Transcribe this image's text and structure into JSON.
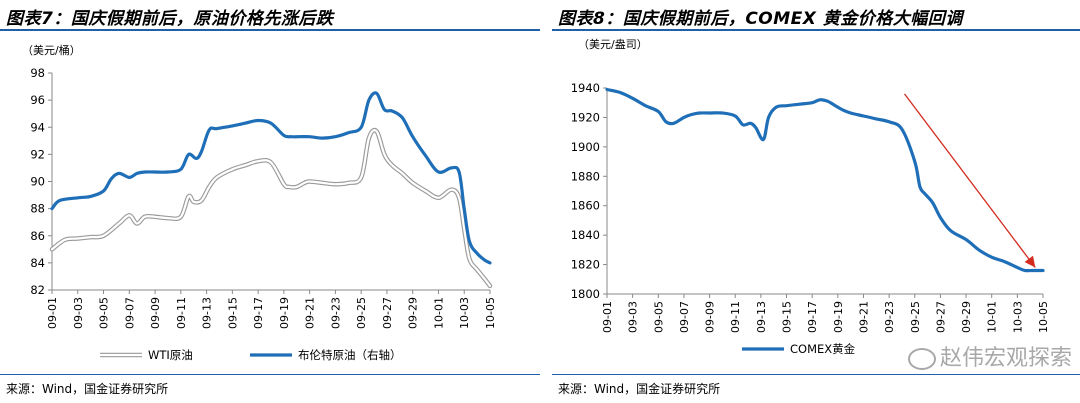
{
  "left": {
    "title": "图表7：国庆假期前后，原油价格先涨后跌",
    "unit": "（美元/桶）",
    "source": "来源：Wind，国金证券研究所"
  },
  "right": {
    "title": "图表8：国庆假期前后，COMEX 黄金价格大幅回调",
    "unit": "（美元/盎司）",
    "source": "来源：Wind，国金证券研究所"
  },
  "watermark": {
    "text": "赵伟宏观探索",
    "icon": "wechat-icon"
  },
  "chart_data": [
    {
      "type": "line",
      "ylim": [
        82,
        98
      ],
      "yticks": [
        82,
        84,
        86,
        88,
        90,
        92,
        94,
        96,
        98
      ],
      "categories": [
        "09-01",
        "09-03",
        "09-05",
        "09-07",
        "09-09",
        "09-11",
        "09-13",
        "09-15",
        "09-17",
        "09-19",
        "09-21",
        "09-23",
        "09-25",
        "09-27",
        "09-29",
        "10-01",
        "10-03",
        "10-05"
      ],
      "legend_position": "bottom",
      "grid": false,
      "series": [
        {
          "name": "WTI原油",
          "color": "#c8c8c8",
          "x": [
            0,
            0.5,
            1,
            1.5,
            2,
            2.6,
            3,
            3.3,
            3.6,
            4,
            4.5,
            5,
            5.3,
            5.5,
            5.8,
            6.1,
            6.4,
            7,
            7.5,
            8,
            8.5,
            9,
            9.2,
            9.5,
            9.8,
            10,
            10.5,
            11,
            11.5,
            12,
            12.3,
            12.6,
            12.9,
            13.2,
            13.6,
            14,
            14.5,
            15,
            15.5,
            15.8,
            16,
            16.2,
            16.5,
            16.8,
            17
          ],
          "values": [
            85.0,
            85.7,
            85.8,
            85.9,
            86.0,
            86.9,
            87.5,
            86.9,
            87.4,
            87.4,
            87.3,
            87.4,
            88.9,
            88.5,
            88.6,
            89.6,
            90.3,
            90.9,
            91.2,
            91.5,
            91.4,
            89.8,
            89.6,
            89.6,
            89.9,
            90.0,
            89.9,
            89.8,
            89.9,
            90.3,
            93.2,
            93.7,
            92.0,
            91.2,
            90.6,
            89.9,
            89.3,
            88.8,
            89.4,
            88.8,
            86.5,
            84.3,
            83.5,
            82.8,
            82.3
          ]
        },
        {
          "name": "布伦特原油（右轴）",
          "color": "#1f6fb8",
          "x": [
            0,
            0.3,
            1,
            1.5,
            2,
            2.3,
            2.6,
            3,
            3.3,
            3.6,
            4,
            4.5,
            5,
            5.3,
            5.6,
            5.8,
            6.1,
            6.4,
            7,
            7.5,
            8,
            8.5,
            9,
            9.3,
            9.6,
            10,
            10.5,
            11,
            11.5,
            12,
            12.3,
            12.6,
            12.9,
            13.2,
            13.6,
            14,
            14.5,
            15,
            15.5,
            15.8,
            16,
            16.2,
            16.5,
            16.8,
            17
          ],
          "values": [
            88.0,
            88.6,
            88.8,
            88.9,
            89.3,
            90.2,
            90.6,
            90.3,
            90.6,
            90.7,
            90.7,
            90.7,
            90.9,
            92.0,
            91.7,
            92.2,
            93.8,
            93.9,
            94.1,
            94.3,
            94.5,
            94.3,
            93.4,
            93.3,
            93.3,
            93.3,
            93.2,
            93.3,
            93.6,
            94.0,
            96.0,
            96.5,
            95.3,
            95.2,
            94.7,
            93.3,
            91.9,
            90.7,
            91.0,
            90.7,
            88.0,
            85.6,
            84.7,
            84.2,
            84.0
          ]
        }
      ]
    },
    {
      "type": "line",
      "ylim": [
        1800,
        1940
      ],
      "yticks": [
        1800,
        1820,
        1840,
        1860,
        1880,
        1900,
        1920,
        1940
      ],
      "categories": [
        "09-01",
        "09-03",
        "09-05",
        "09-07",
        "09-09",
        "09-11",
        "09-13",
        "09-15",
        "09-17",
        "09-19",
        "09-21",
        "09-23",
        "09-25",
        "09-27",
        "09-29",
        "10-01",
        "10-03",
        "10-05"
      ],
      "legend_position": "bottom",
      "grid": false,
      "annotation": {
        "type": "arrow",
        "color": "#d42b1e",
        "from": [
          11.6,
          1936
        ],
        "to": [
          16.7,
          1818
        ]
      },
      "series": [
        {
          "name": "COMEX黄金",
          "color": "#1f6fb8",
          "x": [
            0,
            0.5,
            1,
            1.5,
            2,
            2.3,
            2.6,
            3,
            3.3,
            3.6,
            4,
            4.5,
            5,
            5.3,
            5.6,
            5.8,
            6.1,
            6.3,
            6.6,
            7,
            7.5,
            8,
            8.3,
            8.6,
            8.9,
            9.2,
            9.5,
            10,
            10.5,
            11,
            11.5,
            12,
            12.2,
            12.4,
            12.7,
            13,
            13.4,
            14,
            14.5,
            15,
            15.5,
            16,
            16.3,
            16.6,
            16.8,
            17
          ],
          "values": [
            1939,
            1937,
            1933,
            1928,
            1924,
            1917,
            1916,
            1920,
            1922,
            1923,
            1923,
            1923,
            1921,
            1915,
            1916,
            1913,
            1905,
            1920,
            1927,
            1928,
            1929,
            1930,
            1932,
            1931,
            1928,
            1925,
            1923,
            1921,
            1919,
            1917,
            1912,
            1890,
            1873,
            1868,
            1862,
            1852,
            1843,
            1837,
            1830,
            1825,
            1822,
            1818,
            1816,
            1816,
            1816,
            1816
          ]
        }
      ]
    }
  ]
}
